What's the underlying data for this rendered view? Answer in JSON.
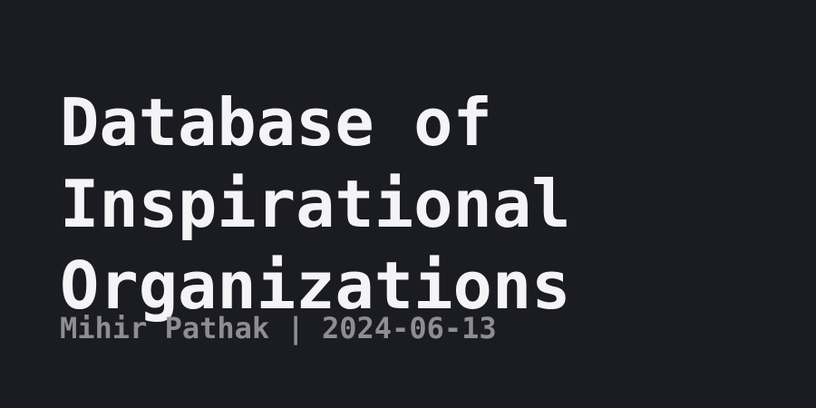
{
  "title": {
    "lines": [
      "Database of",
      "Inspirational",
      "Organizations"
    ]
  },
  "meta": {
    "text": "Mihir Pathak | 2024-06-13"
  },
  "colors": {
    "background": "#1b1b22",
    "title": "#f4f4f6",
    "meta": "#8d8d93"
  }
}
